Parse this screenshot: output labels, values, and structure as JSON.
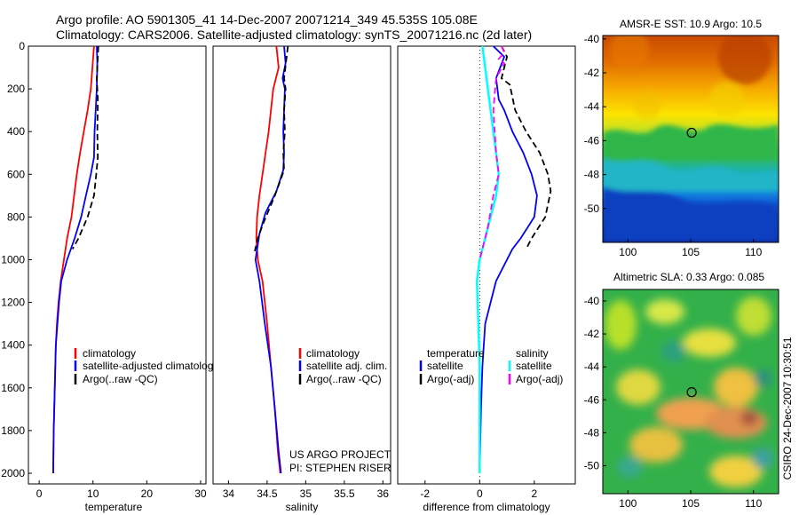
{
  "header": {
    "title_line1": "Argo profile: AO 5901305_41 14-Dec-2007 20071214_349 45.535S 105.08E",
    "title_line2": "Climatology: CARS2006. Satellite-adjusted climatology: synTS_20071216.nc (2d later)"
  },
  "colors": {
    "climatology": "#ff0000",
    "satellite": "#0000ff",
    "argo": "#000000",
    "salinity_satellite": "#00ffff",
    "salinity_argo": "#ff00ff"
  },
  "chart_data": [
    {
      "type": "line",
      "id": "temperature",
      "xlabel": "temperature",
      "xlim": [
        -2,
        31
      ],
      "ylim": [
        0,
        2050
      ],
      "y_reversed": true,
      "xticks": [
        0,
        10,
        20,
        30
      ],
      "yticks": [
        0,
        200,
        400,
        600,
        800,
        1000,
        1200,
        1400,
        1600,
        1800,
        2000
      ],
      "legend": [
        "climatology",
        "satellite-adjusted climatology",
        "Argo(..raw -QC)"
      ],
      "series": [
        {
          "name": "climatology",
          "style": "solid",
          "colorKey": "climatology",
          "points": [
            [
              10.2,
              0
            ],
            [
              9.9,
              100
            ],
            [
              9.6,
              200
            ],
            [
              9.0,
              300
            ],
            [
              8.3,
              400
            ],
            [
              7.6,
              500
            ],
            [
              7.0,
              600
            ],
            [
              6.5,
              700
            ],
            [
              6.0,
              800
            ],
            [
              5.2,
              900
            ],
            [
              4.6,
              1000
            ],
            [
              4.0,
              1100
            ],
            [
              3.6,
              1200
            ],
            [
              3.3,
              1300
            ],
            [
              3.1,
              1400
            ],
            [
              2.9,
              1600
            ],
            [
              2.7,
              1800
            ],
            [
              2.6,
              2000
            ]
          ]
        },
        {
          "name": "satellite-adjusted climatology",
          "style": "solid",
          "colorKey": "satellite",
          "points": [
            [
              10.7,
              0
            ],
            [
              10.8,
              80
            ],
            [
              10.7,
              200
            ],
            [
              10.5,
              300
            ],
            [
              10.3,
              400
            ],
            [
              10.2,
              520
            ],
            [
              9.6,
              600
            ],
            [
              8.7,
              700
            ],
            [
              7.8,
              800
            ],
            [
              6.6,
              900
            ],
            [
              5.2,
              1000
            ],
            [
              4.1,
              1100
            ],
            [
              3.7,
              1200
            ],
            [
              3.4,
              1300
            ],
            [
              3.1,
              1400
            ],
            [
              2.9,
              1600
            ],
            [
              2.7,
              1800
            ],
            [
              2.6,
              2000
            ]
          ]
        },
        {
          "name": "Argo(..raw -QC)",
          "style": "dash",
          "colorKey": "argo",
          "points": [
            [
              11.0,
              0
            ],
            [
              10.7,
              150
            ],
            [
              10.9,
              250
            ],
            [
              10.8,
              400
            ],
            [
              10.9,
              520
            ],
            [
              10.6,
              600
            ],
            [
              10.2,
              700
            ],
            [
              9.0,
              800
            ],
            [
              7.3,
              900
            ],
            [
              6.2,
              950
            ]
          ]
        }
      ]
    },
    {
      "type": "line",
      "id": "salinity",
      "xlabel": "salinity",
      "xlim": [
        33.8,
        36.1
      ],
      "ylim": [
        0,
        2050
      ],
      "y_reversed": true,
      "xticks": [
        34,
        34.5,
        35,
        35.5,
        36
      ],
      "xticklabels": [
        "34",
        "34.5",
        "35",
        "35.5",
        "36"
      ],
      "legend": [
        "climatology",
        "satellite adj. clim.",
        "Argo(..raw -QC)"
      ],
      "annotations": [
        "US ARGO PROJECT",
        "PI: STEPHEN RISER"
      ],
      "series": [
        {
          "name": "climatology",
          "style": "solid",
          "colorKey": "climatology",
          "points": [
            [
              34.62,
              0
            ],
            [
              34.65,
              100
            ],
            [
              34.58,
              200
            ],
            [
              34.55,
              300
            ],
            [
              34.52,
              400
            ],
            [
              34.48,
              500
            ],
            [
              34.44,
              600
            ],
            [
              34.4,
              700
            ],
            [
              34.37,
              800
            ],
            [
              34.36,
              900
            ],
            [
              34.38,
              1000
            ],
            [
              34.44,
              1100
            ],
            [
              34.5,
              1300
            ],
            [
              34.55,
              1500
            ],
            [
              34.6,
              1700
            ],
            [
              34.64,
              1900
            ],
            [
              34.67,
              2000
            ]
          ]
        },
        {
          "name": "satellite adj. clim.",
          "style": "solid",
          "colorKey": "satellite",
          "points": [
            [
              34.72,
              0
            ],
            [
              34.74,
              80
            ],
            [
              34.7,
              150
            ],
            [
              34.73,
              200
            ],
            [
              34.72,
              300
            ],
            [
              34.71,
              400
            ],
            [
              34.72,
              500
            ],
            [
              34.71,
              580
            ],
            [
              34.62,
              680
            ],
            [
              34.48,
              780
            ],
            [
              34.4,
              880
            ],
            [
              34.35,
              1000
            ],
            [
              34.4,
              1100
            ],
            [
              34.47,
              1300
            ],
            [
              34.55,
              1500
            ],
            [
              34.6,
              1700
            ],
            [
              34.65,
              1900
            ],
            [
              34.68,
              2000
            ]
          ]
        },
        {
          "name": "Argo(..raw -QC)",
          "style": "dash",
          "colorKey": "argo",
          "points": [
            [
              34.77,
              0
            ],
            [
              34.72,
              150
            ],
            [
              34.74,
              200
            ],
            [
              34.72,
              300
            ],
            [
              34.73,
              400
            ],
            [
              34.71,
              500
            ],
            [
              34.72,
              580
            ],
            [
              34.6,
              700
            ],
            [
              34.45,
              830
            ],
            [
              34.38,
              900
            ],
            [
              34.34,
              960
            ]
          ]
        }
      ]
    },
    {
      "type": "line",
      "id": "difference",
      "xlabel": "difference from climatology",
      "xlim": [
        -3,
        3.5
      ],
      "ylim": [
        0,
        2050
      ],
      "y_reversed": true,
      "xticks": [
        -2,
        0,
        2
      ],
      "legend_groups": [
        {
          "title": "temperature",
          "items": [
            "satellite",
            "Argo(-adj)"
          ]
        },
        {
          "title": "salinity",
          "items": [
            "satellite",
            "Argo(-adj)"
          ]
        }
      ],
      "series": [
        {
          "name": "temperature satellite",
          "style": "solid",
          "colorKey": "satellite",
          "points": [
            [
              0.5,
              0
            ],
            [
              0.9,
              50
            ],
            [
              0.6,
              150
            ],
            [
              0.7,
              250
            ],
            [
              0.9,
              300
            ],
            [
              1.2,
              400
            ],
            [
              1.6,
              500
            ],
            [
              1.9,
              600
            ],
            [
              2.1,
              700
            ],
            [
              2.0,
              800
            ],
            [
              1.5,
              900
            ],
            [
              1.2,
              950
            ],
            [
              0.6,
              1100
            ],
            [
              0.4,
              1200
            ],
            [
              0.2,
              1300
            ],
            [
              0.1,
              1500
            ],
            [
              0.05,
              1700
            ],
            [
              0.0,
              2000
            ]
          ]
        },
        {
          "name": "temperature Argo(-adj)",
          "style": "dash",
          "colorKey": "argo",
          "points": [
            [
              0.8,
              0
            ],
            [
              1.0,
              50
            ],
            [
              0.8,
              150
            ],
            [
              1.1,
              180
            ],
            [
              1.3,
              300
            ],
            [
              1.7,
              400
            ],
            [
              2.2,
              500
            ],
            [
              2.5,
              600
            ],
            [
              2.6,
              680
            ],
            [
              2.4,
              800
            ],
            [
              1.9,
              900
            ],
            [
              1.7,
              950
            ]
          ]
        },
        {
          "name": "salinity satellite",
          "style": "solid",
          "colorKey": "salinity_satellite",
          "points": [
            [
              0.1,
              0
            ],
            [
              0.2,
              100
            ],
            [
              0.3,
              200
            ],
            [
              0.4,
              300
            ],
            [
              0.5,
              400
            ],
            [
              0.6,
              500
            ],
            [
              0.7,
              600
            ],
            [
              0.6,
              700
            ],
            [
              0.4,
              800
            ],
            [
              0.2,
              900
            ],
            [
              0.0,
              1000
            ],
            [
              -0.1,
              1100
            ],
            [
              -0.05,
              1300
            ],
            [
              0.0,
              1500
            ],
            [
              0.0,
              1700
            ],
            [
              0.0,
              2000
            ]
          ]
        },
        {
          "name": "salinity Argo(-adj)",
          "style": "dash",
          "colorKey": "salinity_argo",
          "points": [
            [
              0.8,
              0
            ],
            [
              0.9,
              30
            ],
            [
              0.7,
              60
            ],
            [
              0.9,
              80
            ],
            [
              0.6,
              150
            ],
            [
              0.5,
              300
            ],
            [
              0.6,
              500
            ],
            [
              0.7,
              600
            ],
            [
              0.5,
              700
            ],
            [
              0.3,
              850
            ],
            [
              0.1,
              950
            ],
            [
              0.0,
              1000
            ]
          ]
        }
      ]
    },
    {
      "type": "heatmap",
      "id": "sst_map",
      "title": "AMSR-E SST: 10.9 Argo: 10.5",
      "xlim": [
        98,
        112
      ],
      "ylim": [
        -52,
        -39.8
      ],
      "xticks": [
        100,
        105,
        110
      ],
      "yticks": [
        -40,
        -42,
        -44,
        -46,
        -48,
        -50
      ],
      "marker": [
        105.08,
        -45.535
      ]
    },
    {
      "type": "heatmap",
      "id": "sla_map",
      "title": "Altimetric SLA: 0.33 Argo: 0.085",
      "xlim": [
        98,
        112
      ],
      "ylim": [
        -51.7,
        -39.3
      ],
      "xticks": [
        100,
        105,
        110
      ],
      "yticks": [
        -40,
        -42,
        -44,
        -46,
        -48,
        -50
      ],
      "marker": [
        105.08,
        -45.535
      ],
      "side_label": "CSIRO 24-Dec-2007 10:30:51"
    }
  ]
}
